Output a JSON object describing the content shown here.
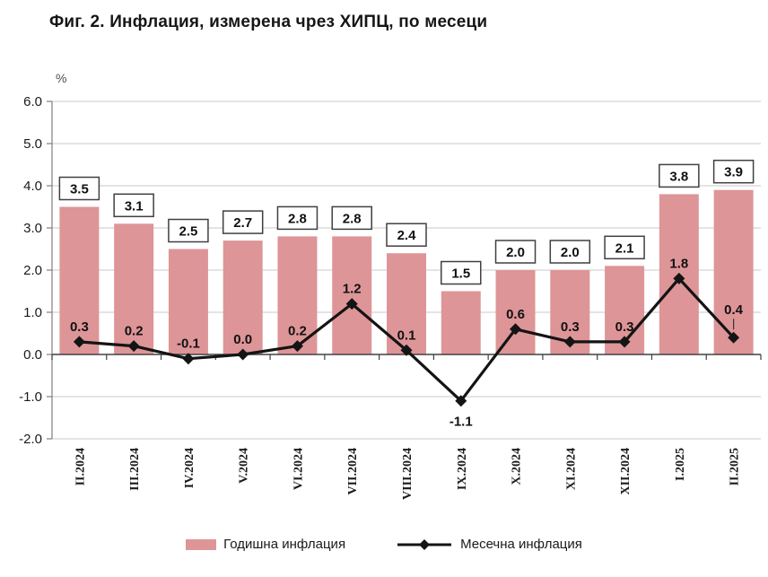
{
  "title": "Фиг. 2. Инфлация, измерена чрез ХИПЦ, по месеци",
  "chart_data": {
    "type": "bar",
    "subtype": "bar-with-line-overlay",
    "title": "Фиг. 2. Инфлация, измерена чрез ХИПЦ, по месеци",
    "categories": [
      "II.2024",
      "III.2024",
      "IV.2024",
      "V.2024",
      "VI.2024",
      "VII.2024",
      "VIII.2024",
      "IX.2024",
      "X.2024",
      "XI.2024",
      "XII.2024",
      "I.2025",
      "II.2025"
    ],
    "series": [
      {
        "name": "Годишна инфлация",
        "type": "bar",
        "color": "#DE9598",
        "values": [
          3.5,
          3.1,
          2.5,
          2.7,
          2.8,
          2.8,
          2.4,
          1.5,
          2.0,
          2.0,
          2.1,
          3.8,
          3.9
        ]
      },
      {
        "name": "Месечна инфлация",
        "type": "line",
        "color": "#141414",
        "marker": "diamond",
        "values": [
          0.3,
          0.2,
          -0.1,
          0.0,
          0.2,
          1.2,
          0.1,
          -1.1,
          0.6,
          0.3,
          0.3,
          1.8,
          0.4
        ]
      }
    ],
    "xlabel": "",
    "ylabel": "%",
    "ylim": [
      -2.0,
      6.0
    ],
    "ytick_step": 1.0,
    "ytick_labels": [
      "-2.0",
      "-1.0",
      "0.0",
      "1.0",
      "2.0",
      "3.0",
      "4.0",
      "5.0",
      "6.0"
    ],
    "grid": true,
    "legend_position": "bottom",
    "data_labels": {
      "bar": "boxed",
      "line": "plain-bold"
    }
  },
  "colors": {
    "bar_fill": "#DE9598",
    "line": "#141414",
    "gridline": "#c9c9c9",
    "axis": "#7f7f7f",
    "zero_axis": "#404040",
    "label_box_border": "#404040",
    "label_box_fill": "#ffffff",
    "text": "#1a1a1a"
  }
}
